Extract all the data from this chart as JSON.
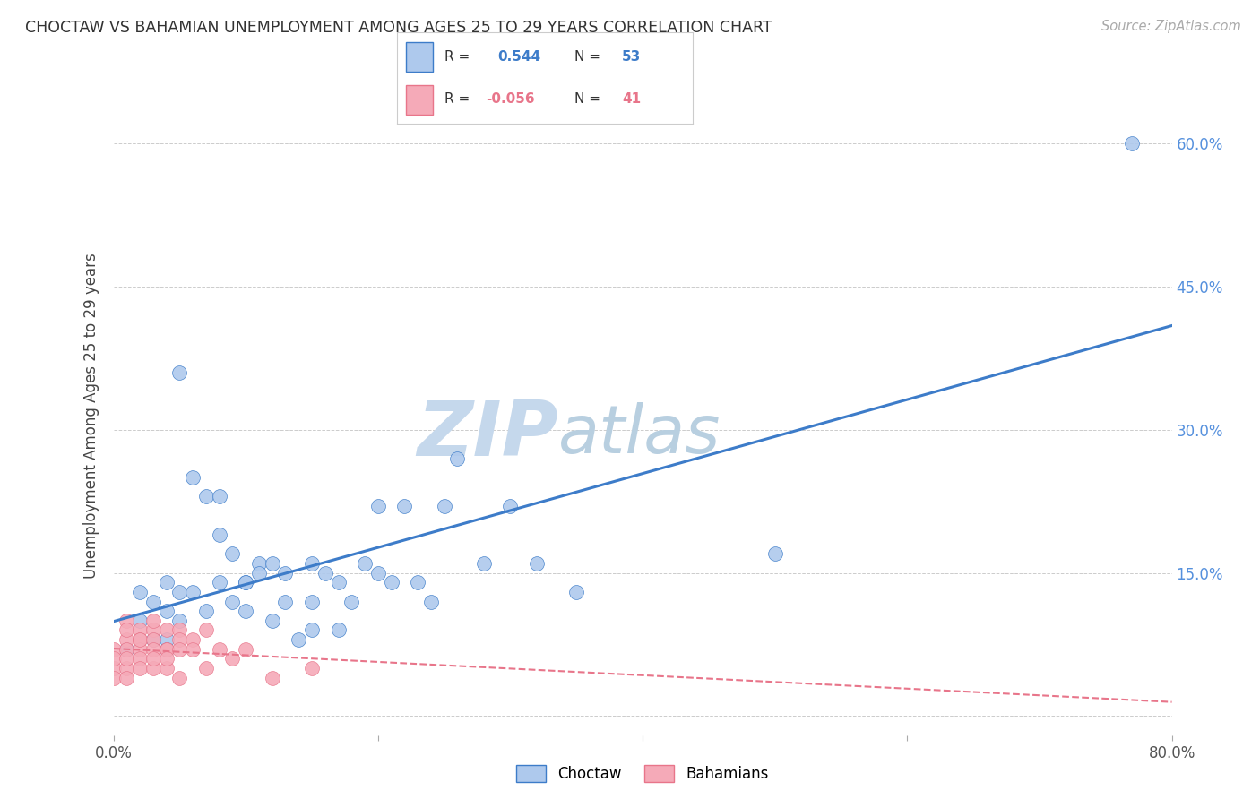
{
  "title": "CHOCTAW VS BAHAMIAN UNEMPLOYMENT AMONG AGES 25 TO 29 YEARS CORRELATION CHART",
  "source_text": "Source: ZipAtlas.com",
  "ylabel": "Unemployment Among Ages 25 to 29 years",
  "choctaw_R": 0.544,
  "choctaw_N": 53,
  "bahamian_R": -0.056,
  "bahamian_N": 41,
  "choctaw_color": "#aec9ed",
  "bahamian_color": "#f5aab8",
  "choctaw_line_color": "#3d7cc9",
  "bahamian_line_color": "#e8758a",
  "watermark_ZIP_color": "#bdd0e8",
  "watermark_atlas_color": "#a8c4de",
  "xlim": [
    0.0,
    0.8
  ],
  "ylim": [
    -0.02,
    0.65
  ],
  "x_ticks": [
    0.0,
    0.2,
    0.4,
    0.6,
    0.8
  ],
  "y_ticks": [
    0.0,
    0.15,
    0.3,
    0.45,
    0.6
  ],
  "choctaw_x": [
    0.01,
    0.02,
    0.02,
    0.03,
    0.03,
    0.04,
    0.04,
    0.04,
    0.04,
    0.05,
    0.05,
    0.05,
    0.06,
    0.06,
    0.07,
    0.07,
    0.08,
    0.08,
    0.08,
    0.09,
    0.09,
    0.1,
    0.1,
    0.1,
    0.11,
    0.11,
    0.12,
    0.12,
    0.13,
    0.13,
    0.14,
    0.15,
    0.15,
    0.15,
    0.16,
    0.17,
    0.17,
    0.18,
    0.19,
    0.2,
    0.2,
    0.21,
    0.22,
    0.23,
    0.24,
    0.25,
    0.26,
    0.28,
    0.3,
    0.32,
    0.35,
    0.77,
    0.5
  ],
  "choctaw_y": [
    0.07,
    0.13,
    0.1,
    0.08,
    0.12,
    0.14,
    0.08,
    0.11,
    0.07,
    0.36,
    0.13,
    0.1,
    0.25,
    0.13,
    0.23,
    0.11,
    0.23,
    0.19,
    0.14,
    0.12,
    0.17,
    0.14,
    0.14,
    0.11,
    0.16,
    0.15,
    0.16,
    0.1,
    0.15,
    0.12,
    0.08,
    0.16,
    0.12,
    0.09,
    0.15,
    0.09,
    0.14,
    0.12,
    0.16,
    0.22,
    0.15,
    0.14,
    0.22,
    0.14,
    0.12,
    0.22,
    0.27,
    0.16,
    0.22,
    0.16,
    0.13,
    0.6,
    0.17
  ],
  "bahamian_x": [
    0.0,
    0.0,
    0.0,
    0.0,
    0.01,
    0.01,
    0.01,
    0.01,
    0.01,
    0.01,
    0.01,
    0.02,
    0.02,
    0.02,
    0.02,
    0.02,
    0.02,
    0.03,
    0.03,
    0.03,
    0.03,
    0.03,
    0.03,
    0.04,
    0.04,
    0.04,
    0.04,
    0.04,
    0.05,
    0.05,
    0.05,
    0.05,
    0.06,
    0.06,
    0.07,
    0.07,
    0.08,
    0.09,
    0.1,
    0.12,
    0.15
  ],
  "bahamian_y": [
    0.05,
    0.04,
    0.07,
    0.06,
    0.08,
    0.05,
    0.1,
    0.09,
    0.07,
    0.06,
    0.04,
    0.09,
    0.08,
    0.07,
    0.06,
    0.08,
    0.05,
    0.09,
    0.08,
    0.1,
    0.07,
    0.05,
    0.06,
    0.07,
    0.09,
    0.05,
    0.07,
    0.06,
    0.09,
    0.08,
    0.04,
    0.07,
    0.08,
    0.07,
    0.09,
    0.05,
    0.07,
    0.06,
    0.07,
    0.04,
    0.05
  ]
}
